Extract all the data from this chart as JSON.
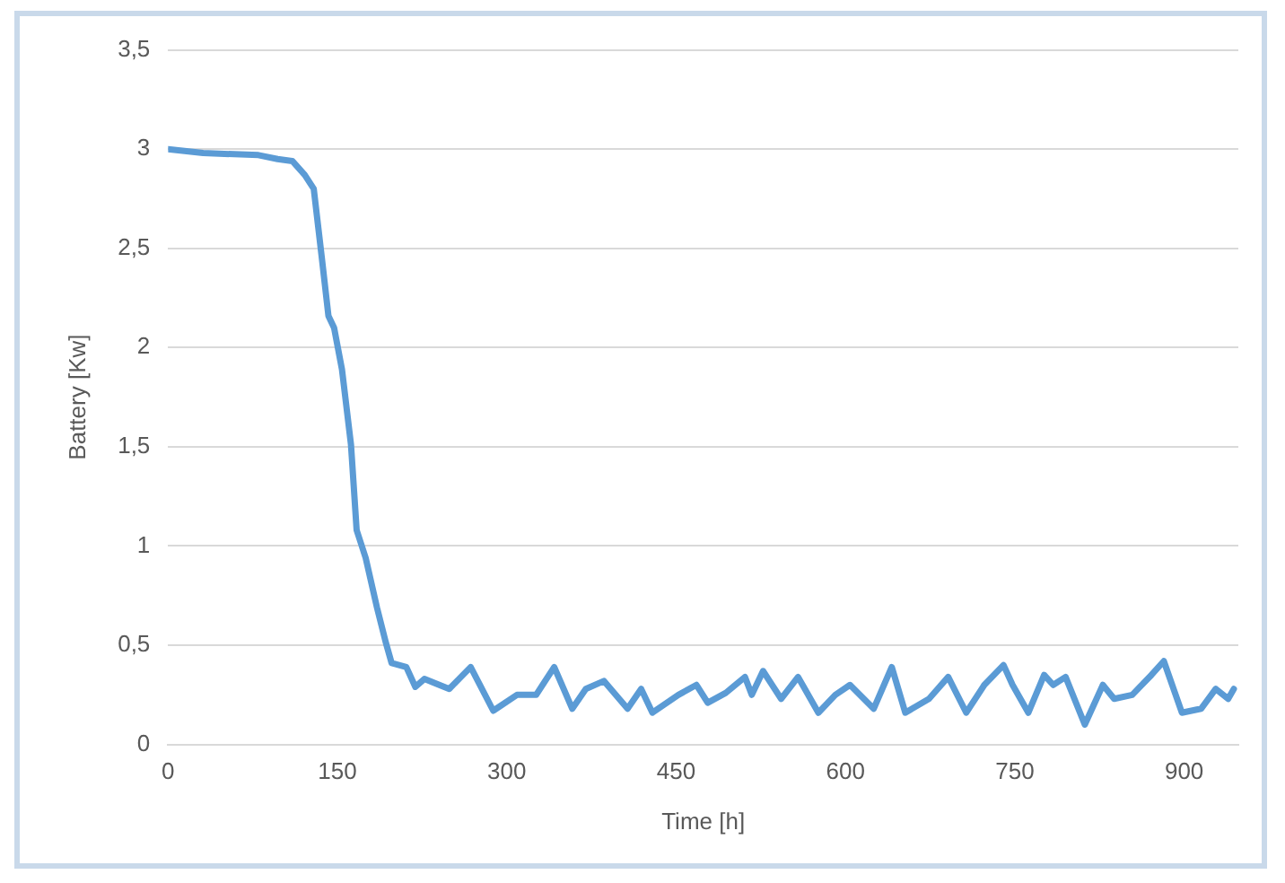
{
  "chart_data": {
    "type": "line",
    "xlabel": "Time [h]",
    "ylabel": "Battery [Kw]",
    "x": [
      0,
      31,
      80,
      97,
      110,
      121,
      129,
      136,
      142,
      147,
      154,
      162,
      167,
      175,
      185,
      193,
      198,
      211,
      219,
      227,
      249,
      268,
      288,
      309,
      326,
      342,
      358,
      370,
      386,
      407,
      419,
      429,
      452,
      468,
      478,
      494,
      511,
      517,
      527,
      543,
      558,
      576,
      591,
      604,
      625,
      641,
      653,
      674,
      691,
      707,
      723,
      740,
      748,
      762,
      776,
      784,
      795,
      812,
      828,
      838,
      854,
      871,
      882,
      898,
      915,
      928,
      939,
      944
    ],
    "series": [
      {
        "color": "#5b9bd5",
        "values": [
          3.0,
          2.98,
          2.97,
          2.95,
          2.94,
          2.87,
          2.8,
          2.46,
          2.16,
          2.1,
          1.89,
          1.51,
          1.08,
          0.94,
          0.69,
          0.51,
          0.41,
          0.39,
          0.29,
          0.33,
          0.28,
          0.39,
          0.17,
          0.25,
          0.25,
          0.39,
          0.18,
          0.28,
          0.32,
          0.18,
          0.28,
          0.16,
          0.25,
          0.3,
          0.21,
          0.26,
          0.34,
          0.25,
          0.37,
          0.23,
          0.34,
          0.16,
          0.25,
          0.3,
          0.18,
          0.39,
          0.16,
          0.23,
          0.34,
          0.16,
          0.3,
          0.4,
          0.3,
          0.16,
          0.35,
          0.3,
          0.34,
          0.1,
          0.3,
          0.23,
          0.25,
          0.35,
          0.42,
          0.16,
          0.18,
          0.28,
          0.23,
          0.28
        ]
      }
    ],
    "xlim": [
      0,
      948
    ],
    "xticks": [
      0,
      150,
      300,
      450,
      600,
      750,
      900
    ],
    "ylim": [
      0,
      3.5
    ],
    "yticks": [
      0,
      {
        "value": 0.5,
        "label": "0,5"
      },
      1,
      {
        "value": 1.5,
        "label": "1,5"
      },
      2,
      {
        "value": 2.5,
        "label": "2,5"
      },
      3,
      {
        "value": 3.5,
        "label": "3,5"
      }
    ],
    "grid": "y",
    "legend": false,
    "marker": "none",
    "line_style": "solid"
  }
}
